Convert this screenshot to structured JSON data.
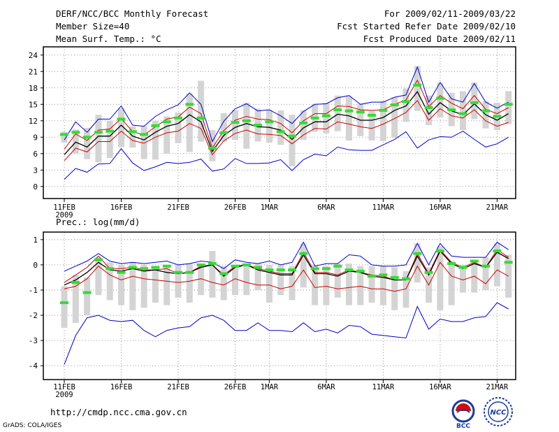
{
  "header": {
    "title": "DERF/NCC/BCC Monthly Forecast",
    "member_size": "Member Size=40",
    "variable": "Mean Surf. Temp.: °C",
    "period": "For 2009/02/11-2009/03/22",
    "started": "Fcst Started Refer Date 2009/02/10",
    "produced": "Fcst Produced Date 2009/02/11"
  },
  "footer": {
    "url": "http://cmdp.ncc.cma.gov.cn",
    "grads": "GrADS: COLA/IGES",
    "logo_left_text": "BCC",
    "logo_right_text": "NCC"
  },
  "colors": {
    "max_min": "#0000cc",
    "spread": "#cc0000",
    "median": "#000000",
    "member": "#33dd33",
    "box": "#d4d4d4",
    "grid": "#777777"
  },
  "chart_data": [
    {
      "type": "line",
      "title": "Mean Surf. Temp.: °C",
      "xlabel": "",
      "ylabel": "",
      "ylim": [
        -2.2,
        25.5
      ],
      "yticks": [
        0,
        3,
        6,
        9,
        12,
        15,
        18,
        21,
        24
      ],
      "x_ticks": [
        {
          "day": 0,
          "label": "11FEB",
          "sub": "2009"
        },
        {
          "day": 5,
          "label": "16FEB",
          "sub": ""
        },
        {
          "day": 10,
          "label": "21FEB",
          "sub": ""
        },
        {
          "day": 15,
          "label": "26FEB",
          "sub": ""
        },
        {
          "day": 18,
          "label": "1MAR",
          "sub": ""
        },
        {
          "day": 23,
          "label": "6MAR",
          "sub": ""
        },
        {
          "day": 28,
          "label": "11MAR",
          "sub": ""
        },
        {
          "day": 33,
          "label": "16MAR",
          "sub": ""
        },
        {
          "day": 38,
          "label": "21MAR",
          "sub": ""
        }
      ],
      "x": [
        0,
        1,
        2,
        3,
        4,
        5,
        6,
        7,
        8,
        9,
        10,
        11,
        12,
        13,
        14,
        15,
        16,
        17,
        18,
        19,
        20,
        21,
        22,
        23,
        24,
        25,
        26,
        27,
        28,
        29,
        30,
        31,
        32,
        33,
        34,
        35,
        36,
        37,
        38,
        39
      ],
      "series": [
        {
          "name": "max",
          "color": "#0000cc",
          "values": [
            8.5,
            11.8,
            9.9,
            12.3,
            12.3,
            14.7,
            11.2,
            11.0,
            12.8,
            14.0,
            14.9,
            17.1,
            15.0,
            8.2,
            11.9,
            14.2,
            15.1,
            13.8,
            14.0,
            12.9,
            11.5,
            13.7,
            15.0,
            15.1,
            16.2,
            16.6,
            15.0,
            15.4,
            15.4,
            16.3,
            16.7,
            21.8,
            15.4,
            19.0,
            16.0,
            15.4,
            18.8,
            15.4,
            14.3,
            15.4
          ]
        },
        {
          "name": "upper",
          "color": "#cc0000",
          "values": [
            6.8,
            9.6,
            8.4,
            10.3,
            10.5,
            12.4,
            10.0,
            9.4,
            10.9,
            12.3,
            12.7,
            14.5,
            13.3,
            7.0,
            10.2,
            12.1,
            12.8,
            12.3,
            12.2,
            11.5,
            9.8,
            12.0,
            13.3,
            13.3,
            14.7,
            14.6,
            14.0,
            13.9,
            14.0,
            15.0,
            15.8,
            19.4,
            14.6,
            16.6,
            15.2,
            14.2,
            16.6,
            14.1,
            13.3,
            14.4
          ]
        },
        {
          "name": "median",
          "color": "#000000",
          "values": [
            5.8,
            8.1,
            7.2,
            9.2,
            9.2,
            11.2,
            9.2,
            8.5,
            9.9,
            11.0,
            11.5,
            13.1,
            11.8,
            6.4,
            9.3,
            10.8,
            11.5,
            10.9,
            10.8,
            10.3,
            8.6,
            10.7,
            11.8,
            11.8,
            13.2,
            12.9,
            12.1,
            12.1,
            12.6,
            13.9,
            14.7,
            17.3,
            13.2,
            15.3,
            13.8,
            13.1,
            15.1,
            13.1,
            12.1,
            13.3
          ]
        },
        {
          "name": "lower",
          "color": "#cc0000",
          "values": [
            4.7,
            7.0,
            6.3,
            8.2,
            8.2,
            10.1,
            8.4,
            7.9,
            9.0,
            9.8,
            10.1,
            11.5,
            10.6,
            5.8,
            8.3,
            9.7,
            10.3,
            9.6,
            9.5,
            9.3,
            7.8,
            9.4,
            10.6,
            10.5,
            11.8,
            11.4,
            10.9,
            10.6,
            11.4,
            12.4,
            13.5,
            15.7,
            12.1,
            14.2,
            12.9,
            12.5,
            14.0,
            12.0,
            11.0,
            11.7
          ]
        },
        {
          "name": "min",
          "color": "#0000cc",
          "values": [
            1.3,
            3.3,
            2.6,
            4.1,
            4.2,
            6.9,
            4.3,
            2.9,
            3.6,
            4.4,
            4.2,
            4.4,
            5.0,
            2.8,
            3.2,
            5.1,
            4.2,
            4.2,
            4.3,
            4.9,
            2.9,
            4.9,
            5.9,
            5.6,
            7.2,
            6.7,
            6.6,
            6.6,
            7.6,
            8.6,
            10.0,
            7.0,
            8.5,
            9.1,
            9.0,
            10.1,
            8.6,
            7.2,
            7.8,
            9.0
          ]
        }
      ],
      "boxes": [
        [
          8.0,
          10.0
        ],
        [
          6.0,
          10.4
        ],
        [
          5.0,
          10.7
        ],
        [
          4.4,
          13.1
        ],
        [
          5.2,
          12.0
        ],
        [
          7.2,
          14.3
        ],
        [
          7.1,
          11.0
        ],
        [
          5.0,
          11.0
        ],
        [
          4.9,
          12.0
        ],
        [
          6.0,
          12.8
        ],
        [
          7.9,
          13.5
        ],
        [
          6.3,
          17.0
        ],
        [
          8.2,
          19.3
        ],
        [
          4.6,
          10.3
        ],
        [
          8.2,
          13.4
        ],
        [
          8.5,
          14.0
        ],
        [
          6.9,
          15.3
        ],
        [
          8.2,
          14.2
        ],
        [
          8.0,
          14.0
        ],
        [
          7.6,
          13.9
        ],
        [
          3.7,
          13.1
        ],
        [
          8.5,
          13.9
        ],
        [
          10.0,
          15.1
        ],
        [
          9.7,
          15.3
        ],
        [
          10.1,
          16.6
        ],
        [
          8.4,
          16.4
        ],
        [
          9.2,
          15.0
        ],
        [
          8.4,
          13.8
        ],
        [
          8.3,
          15.6
        ],
        [
          8.9,
          16.3
        ],
        [
          11.8,
          17.9
        ],
        [
          13.8,
          22.0
        ],
        [
          11.2,
          16.6
        ],
        [
          12.6,
          18.9
        ],
        [
          11.0,
          17.1
        ],
        [
          10.3,
          17.4
        ],
        [
          12.3,
          19.0
        ],
        [
          10.6,
          15.6
        ],
        [
          10.3,
          15.3
        ],
        [
          11.4,
          17.4
        ]
      ],
      "members": [
        9.5,
        9.9,
        9.0,
        9.9,
        10.1,
        12.3,
        10.0,
        9.5,
        11.1,
        11.8,
        12.5,
        15.0,
        12.5,
        7.0,
        9.8,
        11.7,
        12.0,
        11.2,
        11.8,
        10.0,
        9.2,
        11.6,
        12.5,
        12.9,
        14.0,
        13.8,
        13.6,
        13.0,
        13.9,
        14.9,
        15.5,
        18.5,
        14.4,
        16.1,
        14.0,
        13.3,
        15.3,
        13.8,
        12.8,
        15.0
      ]
    },
    {
      "type": "line",
      "title": "Prec.: log(mm/d)",
      "xlabel": "",
      "ylabel": "",
      "ylim": [
        -4.55,
        1.3
      ],
      "yticks": [
        -4,
        -3,
        -2,
        -1,
        0,
        1
      ],
      "x_ticks": [
        {
          "day": 0,
          "label": "11FEB",
          "sub": "2009"
        },
        {
          "day": 5,
          "label": "16FEB",
          "sub": ""
        },
        {
          "day": 10,
          "label": "21FEB",
          "sub": ""
        },
        {
          "day": 15,
          "label": "26FEB",
          "sub": ""
        },
        {
          "day": 18,
          "label": "1MAR",
          "sub": ""
        },
        {
          "day": 23,
          "label": "6MAR",
          "sub": ""
        },
        {
          "day": 28,
          "label": "11MAR",
          "sub": ""
        },
        {
          "day": 33,
          "label": "16MAR",
          "sub": ""
        },
        {
          "day": 38,
          "label": "21MAR",
          "sub": ""
        }
      ],
      "x": [
        0,
        1,
        2,
        3,
        4,
        5,
        6,
        7,
        8,
        9,
        10,
        11,
        12,
        13,
        14,
        15,
        16,
        17,
        18,
        19,
        20,
        21,
        22,
        23,
        24,
        25,
        26,
        27,
        28,
        29,
        30,
        31,
        32,
        33,
        34,
        35,
        36,
        37,
        38,
        39
      ],
      "series": [
        {
          "name": "max",
          "color": "#0000cc",
          "values": [
            -0.25,
            -0.05,
            0.15,
            0.45,
            0.15,
            0.05,
            0.1,
            0.05,
            0.1,
            0.15,
            0.0,
            0.05,
            0.15,
            0.1,
            -0.15,
            0.2,
            0.1,
            0.05,
            0.15,
            0.0,
            0.1,
            0.9,
            -0.05,
            0.05,
            0.05,
            0.4,
            0.35,
            0.0,
            -0.05,
            -0.05,
            0.0,
            0.85,
            0.0,
            0.85,
            0.35,
            0.3,
            0.3,
            0.3,
            0.9,
            0.6
          ]
        },
        {
          "name": "upper",
          "color": "#cc0000",
          "values": [
            -0.7,
            -0.4,
            -0.1,
            0.35,
            -0.15,
            -0.15,
            -0.1,
            -0.2,
            -0.2,
            -0.15,
            -0.35,
            -0.3,
            -0.05,
            0.0,
            -0.4,
            -0.05,
            0.0,
            -0.15,
            -0.25,
            -0.35,
            -0.35,
            0.5,
            -0.3,
            -0.3,
            -0.4,
            -0.2,
            -0.3,
            -0.4,
            -0.45,
            -0.6,
            -0.6,
            0.45,
            -0.35,
            0.6,
            0.1,
            -0.1,
            0.1,
            -0.1,
            0.6,
            0.3
          ]
        },
        {
          "name": "median",
          "color": "#000000",
          "values": [
            -0.8,
            -0.6,
            -0.3,
            0.1,
            -0.2,
            -0.25,
            -0.15,
            -0.25,
            -0.2,
            -0.3,
            -0.35,
            -0.3,
            -0.1,
            0.0,
            -0.45,
            -0.1,
            0.0,
            -0.2,
            -0.3,
            -0.4,
            -0.4,
            0.4,
            -0.35,
            -0.35,
            -0.45,
            -0.25,
            -0.3,
            -0.45,
            -0.5,
            -0.6,
            -0.6,
            0.35,
            -0.4,
            0.55,
            0.05,
            -0.15,
            0.05,
            -0.1,
            0.5,
            0.25
          ]
        },
        {
          "name": "lower",
          "color": "#cc0000",
          "values": [
            -0.95,
            -0.85,
            -0.55,
            -0.05,
            -0.4,
            -0.6,
            -0.45,
            -0.55,
            -0.6,
            -0.65,
            -0.7,
            -0.65,
            -0.55,
            -0.7,
            -0.8,
            -0.55,
            -0.7,
            -0.8,
            -0.8,
            -0.95,
            -0.85,
            -0.2,
            -0.9,
            -0.85,
            -0.95,
            -0.9,
            -0.85,
            -0.95,
            -0.95,
            -1.05,
            -0.95,
            -0.05,
            -0.8,
            0.1,
            -0.45,
            -0.6,
            -0.45,
            -0.75,
            -0.2,
            -0.45
          ]
        },
        {
          "name": "min",
          "color": "#0000cc",
          "values": [
            -3.95,
            -2.8,
            -2.1,
            -2.0,
            -2.2,
            -2.25,
            -2.2,
            -2.6,
            -2.85,
            -2.6,
            -2.5,
            -2.45,
            -2.1,
            -2.0,
            -2.2,
            -2.6,
            -2.6,
            -2.3,
            -2.6,
            -2.6,
            -2.65,
            -2.3,
            -2.65,
            -2.55,
            -2.7,
            -2.4,
            -2.45,
            -2.75,
            -2.8,
            -2.85,
            -2.9,
            -1.65,
            -2.55,
            -2.15,
            -2.25,
            -2.25,
            -2.1,
            -2.05,
            -1.5,
            -1.75
          ]
        },
        {
          "name": "members",
          "color": "#33dd33",
          "values": [
            -1.5,
            -0.7,
            -1.1,
            0.2,
            -0.15,
            -0.3,
            -0.1,
            -0.15,
            -0.1,
            -0.05,
            -0.3,
            -0.3,
            0.0,
            0.05,
            -0.35,
            -0.05,
            0.0,
            -0.1,
            -0.2,
            -0.2,
            -0.2,
            0.45,
            -0.15,
            -0.15,
            -0.05,
            -0.2,
            -0.25,
            -0.45,
            -0.4,
            -0.5,
            -0.55,
            0.45,
            -0.3,
            0.55,
            0.05,
            -0.1,
            0.15,
            -0.05,
            0.55,
            0.1
          ]
        }
      ],
      "boxes": [
        [
          -2.5,
          -0.85
        ],
        [
          -2.3,
          -0.4
        ],
        [
          -2.0,
          -0.5
        ],
        [
          -1.2,
          0.3
        ],
        [
          -1.4,
          0.1
        ],
        [
          -1.6,
          0.0
        ],
        [
          -1.8,
          0.1
        ],
        [
          -1.7,
          0.0
        ],
        [
          -1.5,
          -0.05
        ],
        [
          -1.6,
          -0.05
        ],
        [
          -1.3,
          0.0
        ],
        [
          -1.5,
          0.05
        ],
        [
          -1.2,
          0.05
        ],
        [
          -1.3,
          0.55
        ],
        [
          -1.4,
          -0.05
        ],
        [
          -1.2,
          0.0
        ],
        [
          -1.2,
          0.05
        ],
        [
          -1.0,
          0.05
        ],
        [
          -1.5,
          0.0
        ],
        [
          -1.2,
          0.0
        ],
        [
          -1.4,
          -0.05
        ],
        [
          -0.9,
          0.85
        ],
        [
          -1.6,
          0.0
        ],
        [
          -1.6,
          -0.05
        ],
        [
          -1.3,
          0.05
        ],
        [
          -1.6,
          0.05
        ],
        [
          -1.6,
          -0.05
        ],
        [
          -1.5,
          -0.05
        ],
        [
          -1.6,
          -0.05
        ],
        [
          -1.8,
          -0.1
        ],
        [
          -1.7,
          -0.25
        ],
        [
          -0.7,
          0.85
        ],
        [
          -1.5,
          -0.1
        ],
        [
          -1.8,
          0.75
        ],
        [
          -1.6,
          0.15
        ],
        [
          -1.1,
          0.0
        ],
        [
          -1.1,
          0.1
        ],
        [
          -1.0,
          0.3
        ],
        [
          -0.85,
          0.85
        ],
        [
          -1.3,
          0.4
        ]
      ],
      "members": [
        -1.5,
        -0.7,
        -1.1,
        0.2,
        -0.15,
        -0.3,
        -0.1,
        -0.15,
        -0.1,
        -0.05,
        -0.3,
        -0.3,
        0.0,
        0.05,
        -0.35,
        -0.05,
        0.0,
        -0.1,
        -0.2,
        -0.2,
        -0.2,
        0.45,
        -0.15,
        -0.15,
        -0.05,
        -0.2,
        -0.25,
        -0.45,
        -0.4,
        -0.5,
        -0.55,
        0.45,
        -0.3,
        0.55,
        0.05,
        -0.1,
        0.15,
        -0.05,
        0.55,
        0.1
      ]
    }
  ]
}
